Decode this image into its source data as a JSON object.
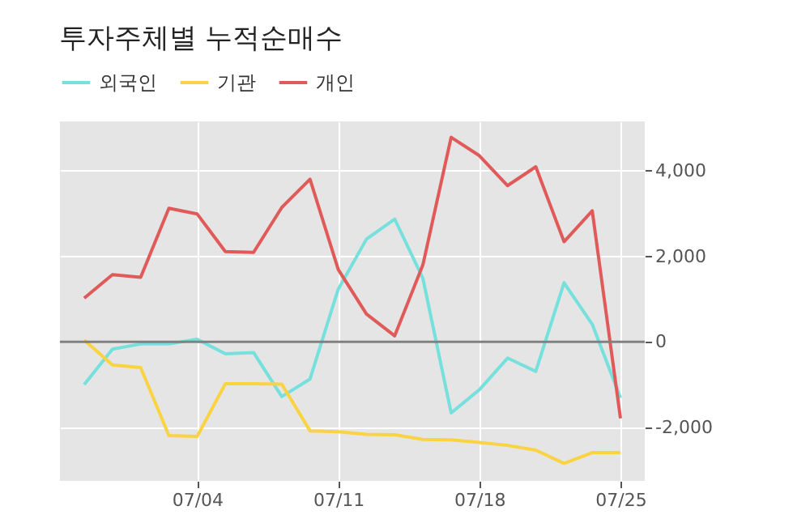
{
  "chart_data": {
    "type": "line",
    "title": "투자주체별 누적순매수",
    "categories": [
      null,
      null,
      null,
      null,
      "07/04",
      null,
      null,
      null,
      null,
      "07/11",
      null,
      null,
      null,
      null,
      "07/18",
      null,
      null,
      null,
      null,
      "07/25"
    ],
    "series": [
      {
        "name": "외국인",
        "color": "#76e0dc",
        "values": [
          -1000,
          -170,
          -50,
          -50,
          60,
          -280,
          -250,
          -1280,
          -870,
          1230,
          2400,
          2870,
          1480,
          -1660,
          -1120,
          -380,
          -690,
          1380,
          410,
          -1310
        ]
      },
      {
        "name": "기관",
        "color": "#f9d342",
        "values": [
          40,
          -540,
          -600,
          -2190,
          -2210,
          -980,
          -980,
          -990,
          -2080,
          -2100,
          -2160,
          -2170,
          -2280,
          -2290,
          -2350,
          -2420,
          -2530,
          -2840,
          -2590,
          -2590
        ]
      },
      {
        "name": "개인",
        "color": "#e05a5a",
        "values": [
          1020,
          1570,
          1510,
          3120,
          2990,
          2110,
          2090,
          3140,
          3800,
          1690,
          650,
          140,
          1800,
          4780,
          4350,
          3650,
          4090,
          2340,
          3060,
          -1790
        ]
      }
    ],
    "ylim": [
      -3250,
      5150
    ],
    "yticks": [
      {
        "value": -2000,
        "label": "-2,000"
      },
      0,
      {
        "value": 2000,
        "label": "2,000"
      },
      {
        "value": 4000,
        "label": "4,000"
      }
    ],
    "ref_lines": [
      {
        "axis": "y",
        "value": 0,
        "color": "#808080"
      }
    ],
    "grid": true,
    "legend": "top left",
    "marker": "none",
    "line_style": "solid"
  }
}
